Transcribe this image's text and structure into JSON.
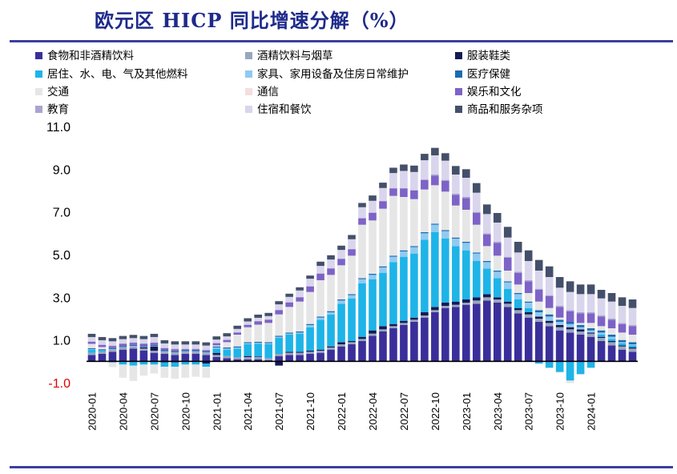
{
  "title": "欧元区 HICP 同比增速分解（%）",
  "colors": {
    "title": "#1e2a8a",
    "rule": "#3b3fa0"
  },
  "chart_data": {
    "type": "bar",
    "stacked": true,
    "title": "欧元区 HICP 同比增速分解（%）",
    "ylim": [
      -1.0,
      11.0
    ],
    "yticks": [
      "11.0",
      "9.0",
      "7.0",
      "5.0",
      "3.0",
      "1.0",
      "-1.0"
    ],
    "ytick_values": [
      11,
      9,
      7,
      5,
      3,
      1,
      -1
    ],
    "xtick_labels": [
      "2020-01",
      "2020-04",
      "2020-07",
      "2020-10",
      "2021-01",
      "2021-04",
      "2021-07",
      "2021-10",
      "2022-01",
      "2022-04",
      "2022-07",
      "2022-10",
      "2023-01",
      "2023-04",
      "2023-07",
      "2023-10",
      "2024-01"
    ],
    "xtick_indices": [
      0,
      3,
      6,
      9,
      12,
      15,
      18,
      21,
      24,
      27,
      30,
      33,
      36,
      39,
      42,
      45,
      48
    ],
    "legend_placement": "top",
    "categories": [
      "2020-01",
      "2020-02",
      "2020-03",
      "2020-04",
      "2020-05",
      "2020-06",
      "2020-07",
      "2020-08",
      "2020-09",
      "2020-10",
      "2020-11",
      "2020-12",
      "2021-01",
      "2021-02",
      "2021-03",
      "2021-04",
      "2021-05",
      "2021-06",
      "2021-07",
      "2021-08",
      "2021-09",
      "2021-10",
      "2021-11",
      "2021-12",
      "2022-01",
      "2022-02",
      "2022-03",
      "2022-04",
      "2022-05",
      "2022-06",
      "2022-07",
      "2022-08",
      "2022-09",
      "2022-10",
      "2022-11",
      "2022-12",
      "2023-01",
      "2023-02",
      "2023-03",
      "2023-04",
      "2023-05",
      "2023-06",
      "2023-07",
      "2023-08",
      "2023-09",
      "2023-10",
      "2023-11",
      "2023-12",
      "2024-01",
      "2024-02",
      "2024-03",
      "2024-04",
      "2024-05"
    ],
    "series": [
      {
        "name": "食物和非酒精饮料",
        "color": "#3a2f9a",
        "values": [
          0.3,
          0.35,
          0.45,
          0.55,
          0.6,
          0.5,
          0.4,
          0.35,
          0.3,
          0.35,
          0.35,
          0.3,
          0.2,
          0.15,
          0.1,
          0.1,
          0.1,
          0.05,
          0.25,
          0.3,
          0.3,
          0.35,
          0.4,
          0.55,
          0.7,
          0.8,
          0.95,
          1.2,
          1.4,
          1.55,
          1.7,
          1.85,
          2.05,
          2.3,
          2.5,
          2.55,
          2.65,
          2.7,
          2.85,
          2.75,
          2.55,
          2.25,
          2.05,
          1.85,
          1.65,
          1.45,
          1.35,
          1.25,
          1.15,
          0.95,
          0.75,
          0.55,
          0.45
        ]
      },
      {
        "name": "酒精饮料与烟草",
        "color": "#9aa6bd",
        "values": [
          0.1,
          0.1,
          0.1,
          0.1,
          0.1,
          0.1,
          0.1,
          0.1,
          0.1,
          0.1,
          0.1,
          0.1,
          0.1,
          0.1,
          0.1,
          0.1,
          0.1,
          0.1,
          0.1,
          0.1,
          0.1,
          0.1,
          0.1,
          0.1,
          0.1,
          0.1,
          0.1,
          0.1,
          0.1,
          0.1,
          0.1,
          0.1,
          0.1,
          0.1,
          0.1,
          0.1,
          0.1,
          0.15,
          0.15,
          0.15,
          0.15,
          0.15,
          0.15,
          0.15,
          0.15,
          0.15,
          0.15,
          0.15,
          0.15,
          0.15,
          0.15,
          0.15,
          0.15
        ]
      },
      {
        "name": "服装鞋类",
        "color": "#141a55",
        "values": [
          0.0,
          0.0,
          0.0,
          0.0,
          0.0,
          0.05,
          0.2,
          -0.05,
          -0.05,
          0.0,
          0.0,
          -0.1,
          0.1,
          0.0,
          0.0,
          0.05,
          0.02,
          0.0,
          -0.2,
          0.05,
          0.05,
          0.05,
          0.05,
          0.05,
          0.1,
          0.05,
          0.1,
          0.15,
          0.15,
          0.1,
          0.1,
          0.1,
          0.15,
          0.15,
          0.15,
          0.15,
          0.15,
          0.15,
          0.15,
          0.1,
          0.1,
          0.1,
          0.1,
          0.1,
          0.1,
          0.1,
          0.1,
          0.1,
          0.05,
          0.05,
          0.05,
          0.05,
          0.05
        ]
      },
      {
        "name": "居住、水、电、气及其他燃料",
        "color": "#1eb4e8",
        "values": [
          0.15,
          0.05,
          -0.05,
          -0.15,
          -0.2,
          -0.15,
          -0.15,
          -0.2,
          -0.2,
          -0.15,
          -0.15,
          -0.15,
          0.2,
          0.3,
          0.4,
          0.55,
          0.6,
          0.65,
          0.75,
          0.8,
          0.85,
          1.1,
          1.4,
          1.5,
          1.8,
          2.0,
          2.5,
          2.4,
          2.5,
          2.9,
          3.0,
          3.0,
          3.4,
          3.5,
          3.0,
          2.6,
          2.3,
          1.7,
          1.2,
          0.9,
          0.6,
          0.4,
          0.2,
          -0.1,
          -0.3,
          -0.5,
          -0.9,
          -0.6,
          -0.3,
          0.1,
          0.1,
          0.1,
          0.1
        ]
      },
      {
        "name": "家具、家用设备及住房日常维护",
        "color": "#90caf0",
        "values": [
          0.02,
          0.02,
          0.02,
          0.02,
          0.02,
          0.02,
          0.02,
          0.02,
          0.02,
          0.02,
          0.02,
          0.02,
          0.05,
          0.05,
          0.05,
          0.05,
          0.05,
          0.05,
          0.05,
          0.05,
          0.05,
          0.1,
          0.1,
          0.1,
          0.15,
          0.15,
          0.2,
          0.2,
          0.25,
          0.25,
          0.25,
          0.3,
          0.3,
          0.35,
          0.35,
          0.35,
          0.35,
          0.35,
          0.3,
          0.3,
          0.3,
          0.25,
          0.25,
          0.2,
          0.2,
          0.15,
          0.15,
          0.1,
          0.1,
          0.1,
          0.1,
          0.05,
          0.05
        ]
      },
      {
        "name": "医疗保健",
        "color": "#1d6bb0",
        "values": [
          0.05,
          0.05,
          0.05,
          0.05,
          0.05,
          0.05,
          0.05,
          0.05,
          0.05,
          0.05,
          0.05,
          0.05,
          0.05,
          0.05,
          0.05,
          0.05,
          0.05,
          0.05,
          0.05,
          0.05,
          0.05,
          0.05,
          0.05,
          0.05,
          0.05,
          0.05,
          0.05,
          0.05,
          0.05,
          0.05,
          0.05,
          0.05,
          0.05,
          0.05,
          0.05,
          0.05,
          0.05,
          0.05,
          0.05,
          0.05,
          0.05,
          0.05,
          0.05,
          0.1,
          0.1,
          0.1,
          0.1,
          0.1,
          0.1,
          0.1,
          0.1,
          0.1,
          0.1
        ]
      },
      {
        "name": "交通",
        "color": "#e6e6e6",
        "values": [
          0.2,
          0.1,
          -0.2,
          -0.6,
          -0.7,
          -0.5,
          -0.4,
          -0.5,
          -0.55,
          -0.6,
          -0.55,
          -0.5,
          0.05,
          0.25,
          0.55,
          0.7,
          0.8,
          0.9,
          1.0,
          1.2,
          1.4,
          1.5,
          1.7,
          1.7,
          1.6,
          1.8,
          2.5,
          2.5,
          2.7,
          2.8,
          2.5,
          2.2,
          2.0,
          1.8,
          1.8,
          1.5,
          1.5,
          1.3,
          0.7,
          0.7,
          0.5,
          0.4,
          0.4,
          0.4,
          0.3,
          0.1,
          -0.1,
          0.1,
          0.25,
          0.2,
          0.3,
          0.35,
          0.35
        ]
      },
      {
        "name": "通信",
        "color": "#f4dede",
        "values": [
          -0.02,
          -0.02,
          -0.02,
          -0.02,
          -0.02,
          -0.02,
          -0.02,
          -0.02,
          -0.02,
          -0.02,
          -0.02,
          -0.02,
          -0.02,
          -0.02,
          -0.02,
          -0.02,
          -0.02,
          -0.02,
          -0.02,
          -0.02,
          -0.02,
          -0.02,
          -0.02,
          -0.02,
          -0.02,
          -0.02,
          -0.02,
          -0.02,
          -0.02,
          -0.02,
          -0.02,
          -0.02,
          -0.02,
          -0.02,
          -0.02,
          -0.02,
          -0.02,
          -0.02,
          -0.02,
          -0.02,
          -0.02,
          -0.02,
          -0.02,
          -0.02,
          -0.02,
          -0.02,
          -0.02,
          -0.02,
          -0.02,
          -0.02,
          -0.02,
          -0.02,
          -0.02
        ]
      },
      {
        "name": "娱乐和文化",
        "color": "#7d63c7",
        "values": [
          0.1,
          0.1,
          0.1,
          0.1,
          0.1,
          0.1,
          0.1,
          0.1,
          0.1,
          0.05,
          0.05,
          0.05,
          0.1,
          0.1,
          0.1,
          0.1,
          0.15,
          0.15,
          0.2,
          0.2,
          0.2,
          0.25,
          0.3,
          0.3,
          0.3,
          0.3,
          0.3,
          0.35,
          0.35,
          0.35,
          0.4,
          0.4,
          0.45,
          0.45,
          0.5,
          0.5,
          0.55,
          0.55,
          0.55,
          0.6,
          0.6,
          0.55,
          0.55,
          0.55,
          0.55,
          0.5,
          0.5,
          0.45,
          0.45,
          0.45,
          0.4,
          0.4,
          0.4
        ]
      },
      {
        "name": "教育",
        "color": "#aaa4cf",
        "values": [
          0.02,
          0.02,
          0.02,
          0.02,
          0.02,
          0.02,
          0.02,
          0.02,
          0.02,
          0.02,
          0.02,
          0.02,
          0.02,
          0.02,
          0.02,
          0.02,
          0.02,
          0.02,
          0.02,
          0.02,
          0.02,
          0.02,
          0.02,
          0.02,
          0.02,
          0.02,
          0.02,
          0.02,
          0.02,
          0.02,
          0.02,
          0.02,
          0.02,
          0.05,
          0.05,
          0.05,
          0.05,
          0.05,
          0.05,
          0.05,
          0.05,
          0.05,
          0.05,
          0.05,
          0.05,
          0.05,
          0.05,
          0.05,
          0.05,
          0.05,
          0.05,
          0.05,
          0.05
        ]
      },
      {
        "name": "住宿和餐饮",
        "color": "#d9d5ec",
        "values": [
          0.2,
          0.2,
          0.2,
          0.2,
          0.2,
          0.2,
          0.25,
          0.2,
          0.2,
          0.2,
          0.2,
          0.2,
          0.15,
          0.15,
          0.15,
          0.15,
          0.15,
          0.15,
          0.25,
          0.25,
          0.3,
          0.35,
          0.35,
          0.4,
          0.4,
          0.45,
          0.5,
          0.55,
          0.6,
          0.7,
          0.8,
          0.85,
          0.9,
          0.9,
          0.9,
          0.9,
          0.9,
          0.9,
          0.9,
          0.9,
          0.9,
          0.9,
          0.9,
          0.85,
          0.85,
          0.85,
          0.85,
          0.85,
          0.85,
          0.8,
          0.8,
          0.8,
          0.8
        ]
      },
      {
        "name": "商品和服务杂项",
        "color": "#44506a",
        "values": [
          0.15,
          0.15,
          0.15,
          0.15,
          0.15,
          0.15,
          0.15,
          0.15,
          0.15,
          0.15,
          0.15,
          0.15,
          0.15,
          0.15,
          0.15,
          0.15,
          0.15,
          0.15,
          0.15,
          0.15,
          0.15,
          0.15,
          0.2,
          0.2,
          0.2,
          0.2,
          0.2,
          0.25,
          0.25,
          0.25,
          0.3,
          0.3,
          0.3,
          0.35,
          0.35,
          0.4,
          0.4,
          0.45,
          0.45,
          0.45,
          0.5,
          0.5,
          0.5,
          0.5,
          0.5,
          0.5,
          0.5,
          0.45,
          0.45,
          0.4,
          0.4,
          0.4,
          0.4
        ]
      }
    ]
  }
}
